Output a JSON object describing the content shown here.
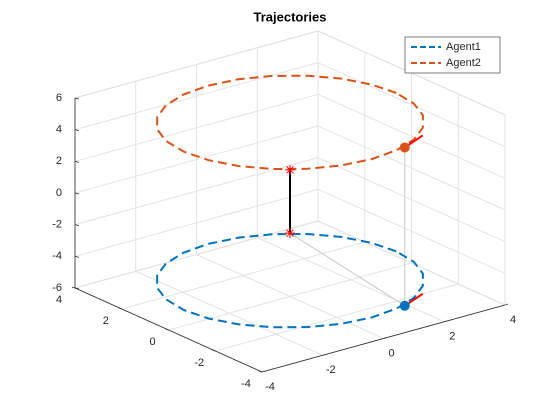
{
  "chart_data": {
    "type": "line3d",
    "title": "Trajectories",
    "xlim": [
      -4,
      4
    ],
    "xticks": [
      -4,
      -2,
      0,
      2,
      4
    ],
    "ylim": [
      -4,
      4
    ],
    "yticks": [
      -4,
      -2,
      0,
      2,
      4
    ],
    "zlim": [
      -6,
      6
    ],
    "zticks": [
      -6,
      -4,
      -2,
      0,
      2,
      4,
      6
    ],
    "grid": true,
    "legend": "upper right",
    "series": [
      {
        "name": "Agent1",
        "color": "#0072bd",
        "x": [
          3.5,
          3.38,
          3.03,
          2.47,
          1.75,
          0.91,
          0,
          -0.91,
          -1.75,
          -2.47,
          -3.03,
          -3.38,
          -3.5,
          -3.38,
          -3.03,
          -2.47,
          -1.75,
          -0.91,
          0,
          0.91,
          1.75,
          2.47,
          3.03,
          3.38,
          3.5
        ],
        "y": [
          0,
          0.91,
          1.75,
          2.47,
          3.03,
          3.38,
          3.5,
          3.38,
          3.03,
          2.47,
          1.75,
          0.91,
          0,
          -0.91,
          -1.75,
          -2.47,
          -3.03,
          -3.38,
          -3.5,
          -3.38,
          -3.03,
          -2.47,
          -1.75,
          -0.91,
          0
        ],
        "z": [
          -5,
          -5,
          -5,
          -5,
          -5,
          -5,
          -5,
          -5,
          -5,
          -5,
          -5,
          -5,
          -5,
          -5,
          -5,
          -5,
          -5,
          -5,
          -5,
          -5,
          -5,
          -5,
          -5,
          -5,
          -5
        ],
        "position": {
          "x": 1.2,
          "y": -3.35,
          "z": -5
        }
      },
      {
        "name": "Agent2",
        "color": "#d95319",
        "x": [
          3.5,
          3.38,
          3.03,
          2.47,
          1.75,
          0.91,
          0,
          -0.91,
          -1.75,
          -2.47,
          -3.03,
          -3.38,
          -3.5,
          -3.38,
          -3.03,
          -2.47,
          -1.75,
          -0.91,
          0,
          0.91,
          1.75,
          2.47,
          3.03,
          3.38,
          3.5
        ],
        "y": [
          0,
          0.91,
          1.75,
          2.47,
          3.03,
          3.38,
          3.5,
          3.38,
          3.03,
          2.47,
          1.75,
          0.91,
          0,
          -0.91,
          -1.75,
          -2.47,
          -3.03,
          -3.38,
          -3.5,
          -3.38,
          -3.03,
          -2.47,
          -1.75,
          -0.91,
          0
        ],
        "z": [
          5,
          5,
          5,
          5,
          5,
          5,
          5,
          5,
          5,
          5,
          5,
          5,
          5,
          5,
          5,
          5,
          5,
          5,
          5,
          5,
          5,
          5,
          5,
          5,
          5
        ],
        "position": {
          "x": 1.2,
          "y": -3.35,
          "z": 5
        }
      }
    ],
    "link": {
      "x": [
        0,
        0
      ],
      "y": [
        0,
        0
      ],
      "z": [
        -2,
        2
      ],
      "color": "#000000",
      "marker_color": "#ff0000"
    }
  }
}
